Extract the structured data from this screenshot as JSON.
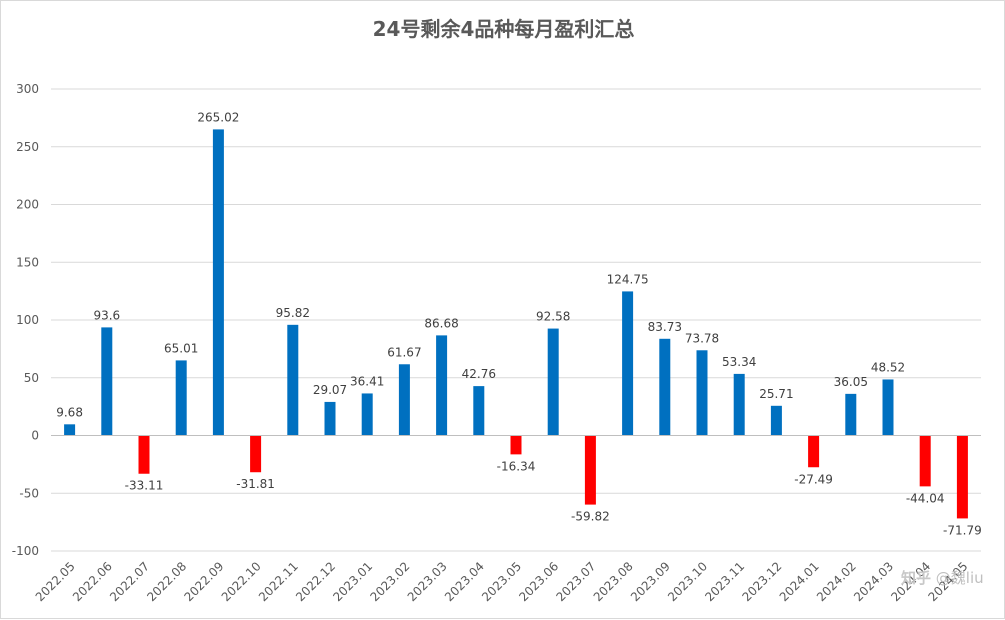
{
  "chart_data": {
    "type": "bar",
    "title": "24号剩余4品种每月盈利汇总",
    "xlabel": "",
    "ylabel": "",
    "ylim": [
      -100,
      300
    ],
    "yticks": [
      -100,
      -50,
      0,
      50,
      100,
      150,
      200,
      250,
      300
    ],
    "grid": true,
    "legend": "none",
    "colors": {
      "positive": "#0070c0",
      "negative": "#ff0000",
      "grid": "#d9d9d9",
      "axis": "#bfbfbf",
      "text": "#404040"
    },
    "categories": [
      "2022.05",
      "2022.06",
      "2022.07",
      "2022.08",
      "2022.09",
      "2022.10",
      "2022.11",
      "2022.12",
      "2023.01",
      "2023.02",
      "2023.03",
      "2023.04",
      "2023.05",
      "2023.06",
      "2023.07",
      "2023.08",
      "2023.09",
      "2023.10",
      "2023.11",
      "2023.12",
      "2024.01",
      "2024.02",
      "2024.03",
      "2024.04",
      "2024.05"
    ],
    "values": [
      9.68,
      93.6,
      -33.11,
      65.01,
      265.02,
      -31.81,
      95.82,
      29.07,
      36.41,
      61.67,
      86.68,
      42.76,
      -16.34,
      92.58,
      -59.82,
      124.75,
      83.73,
      73.78,
      53.34,
      25.71,
      -27.49,
      36.05,
      48.52,
      -44.04,
      -71.79
    ]
  },
  "watermark": {
    "logo": "知乎",
    "text": "@魏liu"
  }
}
